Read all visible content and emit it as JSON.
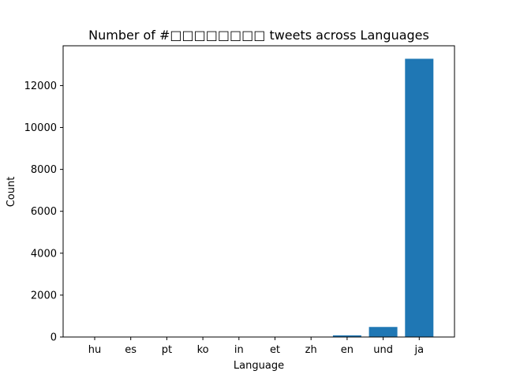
{
  "chart_data": {
    "type": "bar",
    "title": "Number of #□□□□□□□□ tweets across Languages",
    "xlabel": "Language",
    "ylabel": "Count",
    "categories": [
      "hu",
      "es",
      "pt",
      "ko",
      "in",
      "et",
      "zh",
      "en",
      "und",
      "ja"
    ],
    "values": [
      1,
      1,
      1,
      1,
      2,
      2,
      3,
      80,
      480,
      13280
    ],
    "ylim": [
      0,
      13900
    ],
    "yticks": [
      0,
      2000,
      4000,
      6000,
      8000,
      10000,
      12000
    ],
    "bar_color": "#1f77b4",
    "grid": false,
    "legend": false
  }
}
